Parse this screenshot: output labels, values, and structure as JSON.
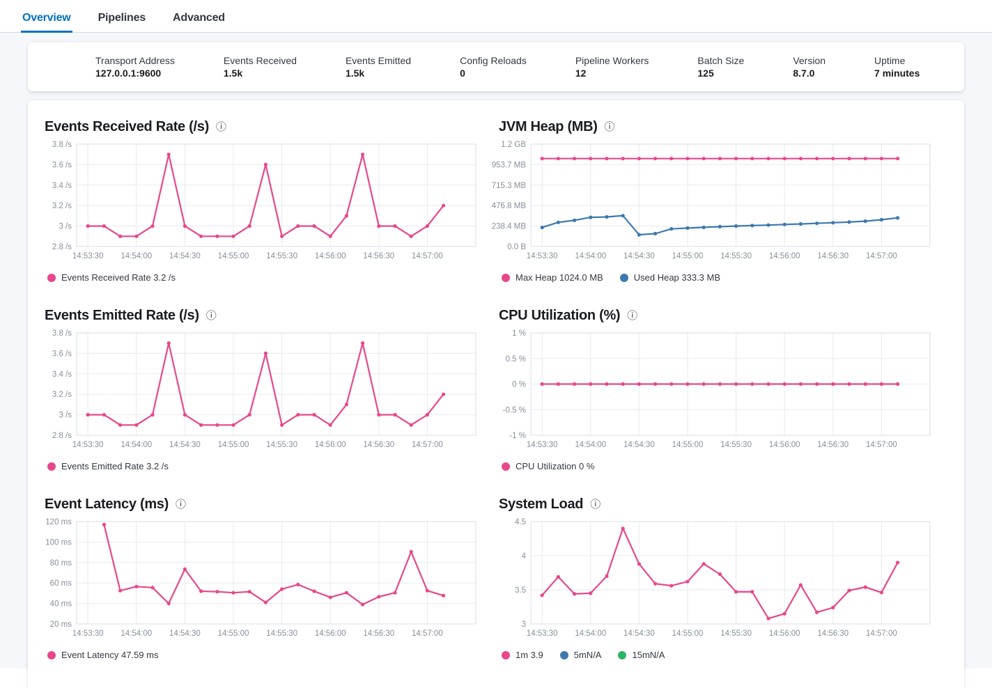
{
  "tabs": [
    {
      "label": "Overview",
      "active": true
    },
    {
      "label": "Pipelines",
      "active": false
    },
    {
      "label": "Advanced",
      "active": false
    }
  ],
  "stats": {
    "items": [
      {
        "label": "Transport Address",
        "value": "127.0.0.1:9600"
      },
      {
        "label": "Events Received",
        "value": "1.5k"
      },
      {
        "label": "Events Emitted",
        "value": "1.5k"
      },
      {
        "label": "Config Reloads",
        "value": "0"
      },
      {
        "label": "Pipeline Workers",
        "value": "12"
      },
      {
        "label": "Batch Size",
        "value": "125"
      },
      {
        "label": "Version",
        "value": "8.7.0"
      },
      {
        "label": "Uptime",
        "value": "7 minutes"
      }
    ]
  },
  "colors": {
    "pink": "#e8478b",
    "blue": "#3d79ae",
    "green": "#2bb463",
    "tab_active": "#0071c2"
  },
  "chart_data": [
    {
      "type": "line",
      "title": "Events Received Rate (/s)",
      "ylabel": "/s",
      "x_domain": [
        -7,
        240
      ],
      "y_domain": [
        2.8,
        3.8
      ],
      "y_ticks": [
        {
          "label": "3.8 /s",
          "v": 3.8
        },
        {
          "label": "3.6 /s",
          "v": 3.6
        },
        {
          "label": "3.4 /s",
          "v": 3.4
        },
        {
          "label": "3.2 /s",
          "v": 3.2
        },
        {
          "label": "3 /s",
          "v": 3
        },
        {
          "label": "2.8 /s",
          "v": 2.8
        }
      ],
      "x_ticks": [
        {
          "label": "14:53:30",
          "t": 0
        },
        {
          "label": "14:54:00",
          "t": 30
        },
        {
          "label": "14:54:30",
          "t": 60
        },
        {
          "label": "14:55:00",
          "t": 90
        },
        {
          "label": "14:55:30",
          "t": 120
        },
        {
          "label": "14:56:00",
          "t": 150
        },
        {
          "label": "14:56:30",
          "t": 180
        },
        {
          "label": "14:57:00",
          "t": 210
        }
      ],
      "series": [
        {
          "name": "Events Received Rate",
          "color": "pink",
          "t0": 0,
          "dt": 10,
          "values": [
            3,
            3,
            2.9,
            2.9,
            3,
            3.7,
            3,
            2.9,
            2.9,
            2.9,
            3,
            3.6,
            2.9,
            3,
            3,
            2.9,
            3.1,
            3.7,
            3,
            3,
            2.9,
            3,
            3.2
          ]
        }
      ],
      "legend": [
        {
          "color": "pink",
          "label": "Events Received Rate 3.2 /s"
        }
      ]
    },
    {
      "type": "line",
      "title": "JVM Heap (MB)",
      "ylabel": "MB",
      "x_domain": [
        -7,
        240
      ],
      "y_domain": [
        0,
        1192
      ],
      "y_ticks": [
        {
          "label": "1.2 GB",
          "v": 1192
        },
        {
          "label": "953.7 MB",
          "v": 953.7
        },
        {
          "label": "715.3 MB",
          "v": 715.3
        },
        {
          "label": "476.8 MB",
          "v": 476.8
        },
        {
          "label": "238.4 MB",
          "v": 238.4
        },
        {
          "label": "0.0 B",
          "v": 0
        }
      ],
      "x_ticks": [
        {
          "label": "14:53:30",
          "t": 0
        },
        {
          "label": "14:54:00",
          "t": 30
        },
        {
          "label": "14:54:30",
          "t": 60
        },
        {
          "label": "14:55:00",
          "t": 90
        },
        {
          "label": "14:55:30",
          "t": 120
        },
        {
          "label": "14:56:00",
          "t": 150
        },
        {
          "label": "14:56:30",
          "t": 180
        },
        {
          "label": "14:57:00",
          "t": 210
        }
      ],
      "series": [
        {
          "name": "Max Heap",
          "color": "pink",
          "t0": 0,
          "dt": 10,
          "values": [
            1024,
            1024,
            1024,
            1024,
            1024,
            1024,
            1024,
            1024,
            1024,
            1024,
            1024,
            1024,
            1024,
            1024,
            1024,
            1024,
            1024,
            1024,
            1024,
            1024,
            1024,
            1024,
            1024
          ]
        },
        {
          "name": "Used Heap",
          "color": "blue",
          "t0": 0,
          "dt": 10,
          "values": [
            222,
            281,
            305,
            340,
            345,
            359,
            137,
            150,
            205,
            215,
            223,
            231,
            238,
            244,
            250,
            257,
            263,
            270,
            277,
            285,
            295,
            312,
            333
          ]
        }
      ],
      "legend": [
        {
          "color": "pink",
          "label": "Max Heap 1024.0 MB"
        },
        {
          "color": "blue",
          "label": "Used Heap 333.3 MB"
        }
      ]
    },
    {
      "type": "line",
      "title": "Events Emitted Rate (/s)",
      "ylabel": "/s",
      "x_domain": [
        -7,
        240
      ],
      "y_domain": [
        2.8,
        3.8
      ],
      "y_ticks": [
        {
          "label": "3.8 /s",
          "v": 3.8
        },
        {
          "label": "3.6 /s",
          "v": 3.6
        },
        {
          "label": "3.4 /s",
          "v": 3.4
        },
        {
          "label": "3.2 /s",
          "v": 3.2
        },
        {
          "label": "3 /s",
          "v": 3
        },
        {
          "label": "2.8 /s",
          "v": 2.8
        }
      ],
      "x_ticks": [
        {
          "label": "14:53:30",
          "t": 0
        },
        {
          "label": "14:54:00",
          "t": 30
        },
        {
          "label": "14:54:30",
          "t": 60
        },
        {
          "label": "14:55:00",
          "t": 90
        },
        {
          "label": "14:55:30",
          "t": 120
        },
        {
          "label": "14:56:00",
          "t": 150
        },
        {
          "label": "14:56:30",
          "t": 180
        },
        {
          "label": "14:57:00",
          "t": 210
        }
      ],
      "series": [
        {
          "name": "Events Emitted Rate",
          "color": "pink",
          "t0": 0,
          "dt": 10,
          "values": [
            3,
            3,
            2.9,
            2.9,
            3,
            3.7,
            3,
            2.9,
            2.9,
            2.9,
            3,
            3.6,
            2.9,
            3,
            3,
            2.9,
            3.1,
            3.7,
            3,
            3,
            2.9,
            3,
            3.2
          ]
        }
      ],
      "legend": [
        {
          "color": "pink",
          "label": "Events Emitted Rate 3.2 /s"
        }
      ]
    },
    {
      "type": "line",
      "title": "CPU Utilization (%)",
      "ylabel": "%",
      "x_domain": [
        -7,
        240
      ],
      "y_domain": [
        -1,
        1
      ],
      "y_ticks": [
        {
          "label": "1 %",
          "v": 1
        },
        {
          "label": "0.5 %",
          "v": 0.5
        },
        {
          "label": "0 %",
          "v": 0
        },
        {
          "label": "-0.5 %",
          "v": -0.5
        },
        {
          "label": "-1 %",
          "v": -1
        }
      ],
      "x_ticks": [
        {
          "label": "14:53:30",
          "t": 0
        },
        {
          "label": "14:54:00",
          "t": 30
        },
        {
          "label": "14:54:30",
          "t": 60
        },
        {
          "label": "14:55:00",
          "t": 90
        },
        {
          "label": "14:55:30",
          "t": 120
        },
        {
          "label": "14:56:00",
          "t": 150
        },
        {
          "label": "14:56:30",
          "t": 180
        },
        {
          "label": "14:57:00",
          "t": 210
        }
      ],
      "series": [
        {
          "name": "CPU Utilization",
          "color": "pink",
          "t0": 0,
          "dt": 10,
          "values": [
            0,
            0,
            0,
            0,
            0,
            0,
            0,
            0,
            0,
            0,
            0,
            0,
            0,
            0,
            0,
            0,
            0,
            0,
            0,
            0,
            0,
            0,
            0
          ]
        }
      ],
      "legend": [
        {
          "color": "pink",
          "label": "CPU Utilization 0 %"
        }
      ]
    },
    {
      "type": "line",
      "title": "Event Latency (ms)",
      "ylabel": "ms",
      "x_domain": [
        -7,
        240
      ],
      "y_domain": [
        20,
        120
      ],
      "y_ticks": [
        {
          "label": "120 ms",
          "v": 120
        },
        {
          "label": "100 ms",
          "v": 100
        },
        {
          "label": "80 ms",
          "v": 80
        },
        {
          "label": "60 ms",
          "v": 60
        },
        {
          "label": "40 ms",
          "v": 40
        },
        {
          "label": "20 ms",
          "v": 20
        }
      ],
      "x_ticks": [
        {
          "label": "14:53:30",
          "t": 0
        },
        {
          "label": "14:54:00",
          "t": 30
        },
        {
          "label": "14:54:30",
          "t": 60
        },
        {
          "label": "14:55:00",
          "t": 90
        },
        {
          "label": "14:55:30",
          "t": 120
        },
        {
          "label": "14:56:00",
          "t": 150
        },
        {
          "label": "14:56:30",
          "t": 180
        },
        {
          "label": "14:57:00",
          "t": 210
        }
      ],
      "series": [
        {
          "name": "Event Latency",
          "color": "pink",
          "t0": 10,
          "dt": 10,
          "values": [
            117,
            52.5,
            56.5,
            55.5,
            40,
            73.5,
            52,
            51.5,
            50.5,
            51.5,
            41,
            54,
            58.5,
            52,
            46,
            50.5,
            39,
            46.5,
            50.5,
            90.5,
            52.5,
            47.59
          ]
        }
      ],
      "legend": [
        {
          "color": "pink",
          "label": "Event Latency 47.59 ms"
        }
      ]
    },
    {
      "type": "line",
      "title": "System Load",
      "ylabel": "",
      "x_domain": [
        -7,
        240
      ],
      "y_domain": [
        3,
        4.5
      ],
      "y_ticks": [
        {
          "label": "4.5",
          "v": 4.5
        },
        {
          "label": "4",
          "v": 4
        },
        {
          "label": "3.5",
          "v": 3.5
        },
        {
          "label": "3",
          "v": 3
        }
      ],
      "x_ticks": [
        {
          "label": "14:53:30",
          "t": 0
        },
        {
          "label": "14:54:00",
          "t": 30
        },
        {
          "label": "14:54:30",
          "t": 60
        },
        {
          "label": "14:55:00",
          "t": 90
        },
        {
          "label": "14:55:30",
          "t": 120
        },
        {
          "label": "14:56:00",
          "t": 150
        },
        {
          "label": "14:56:30",
          "t": 180
        },
        {
          "label": "14:57:00",
          "t": 210
        }
      ],
      "series": [
        {
          "name": "1m",
          "color": "pink",
          "t0": 0,
          "dt": 10,
          "values": [
            3.42,
            3.69,
            3.44,
            3.45,
            3.7,
            4.4,
            3.88,
            3.59,
            3.56,
            3.62,
            3.88,
            3.73,
            3.47,
            3.47,
            3.08,
            3.15,
            3.57,
            3.17,
            3.24,
            3.49,
            3.54,
            3.46,
            3.9
          ]
        }
      ],
      "legend": [
        {
          "color": "pink",
          "label": "1m 3.9"
        },
        {
          "color": "blue",
          "label": "5mN/A"
        },
        {
          "color": "green",
          "label": "15mN/A"
        }
      ]
    }
  ]
}
